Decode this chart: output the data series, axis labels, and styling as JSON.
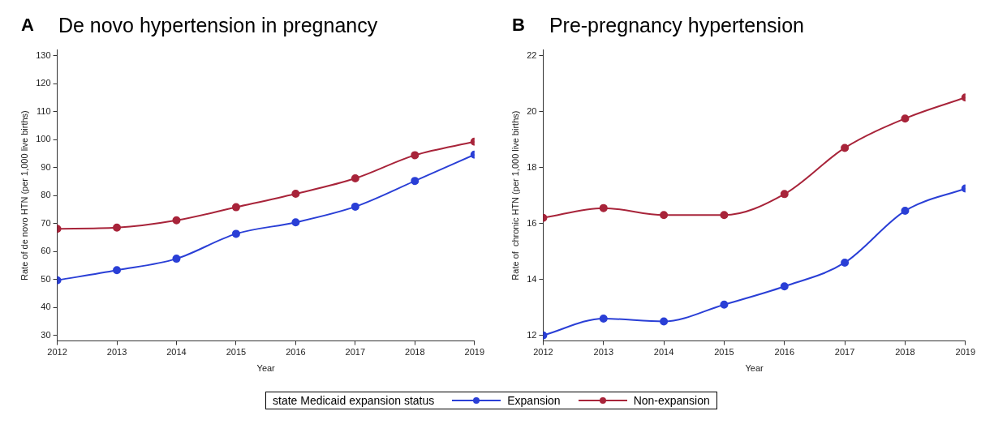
{
  "chart_data": [
    {
      "type": "line",
      "title": "De novo hypertension in pregnancy",
      "annotations": [
        "A"
      ],
      "xlabel": "Year",
      "ylabel": "Rate of de novo HTN (per 1,000 live births)",
      "legend_title": "state Medicaid expansion status",
      "legend": "bottom",
      "grid": false,
      "marker": "circle",
      "x": [
        2012,
        2013,
        2014,
        2015,
        2016,
        2017,
        2018,
        2019
      ],
      "xlim": [
        2012,
        2019
      ],
      "xticks": [
        2012,
        2013,
        2014,
        2015,
        2016,
        2017,
        2018,
        2019
      ],
      "ylim": [
        28,
        132
      ],
      "yticks": [
        30,
        40,
        50,
        60,
        70,
        80,
        90,
        100,
        110,
        120,
        130
      ],
      "series": [
        {
          "name": "Expansion",
          "color": "#2a3fd6",
          "values": [
            49.7,
            53.3,
            57.4,
            66.3,
            70.4,
            76.0,
            85.2,
            94.6
          ]
        },
        {
          "name": "Non-expansion",
          "color": "#a8243a",
          "values": [
            68.1,
            68.5,
            71.1,
            75.8,
            80.6,
            86.1,
            94.4,
            99.2
          ]
        }
      ]
    },
    {
      "type": "line",
      "title": "Pre-pregnancy hypertension",
      "annotations": [
        "B"
      ],
      "xlabel": "Year",
      "ylabel": "Rate of  chronic HTN (per 1,000 live births)",
      "grid": false,
      "marker": "circle",
      "x": [
        2012,
        2013,
        2014,
        2015,
        2016,
        2017,
        2018,
        2019
      ],
      "xlim": [
        2012,
        2019
      ],
      "xticks": [
        2012,
        2013,
        2014,
        2015,
        2016,
        2017,
        2018,
        2019
      ],
      "ylim": [
        11.8,
        22.2
      ],
      "yticks": [
        12,
        14,
        16,
        18,
        20,
        22
      ],
      "series": [
        {
          "color": "#2a3fd6",
          "values": [
            12.0,
            12.6,
            12.5,
            13.1,
            13.75,
            14.6,
            16.45,
            17.25
          ]
        },
        {
          "color": "#a8243a",
          "values": [
            16.2,
            16.55,
            16.3,
            16.3,
            17.05,
            18.7,
            19.75,
            20.5
          ]
        }
      ]
    }
  ]
}
